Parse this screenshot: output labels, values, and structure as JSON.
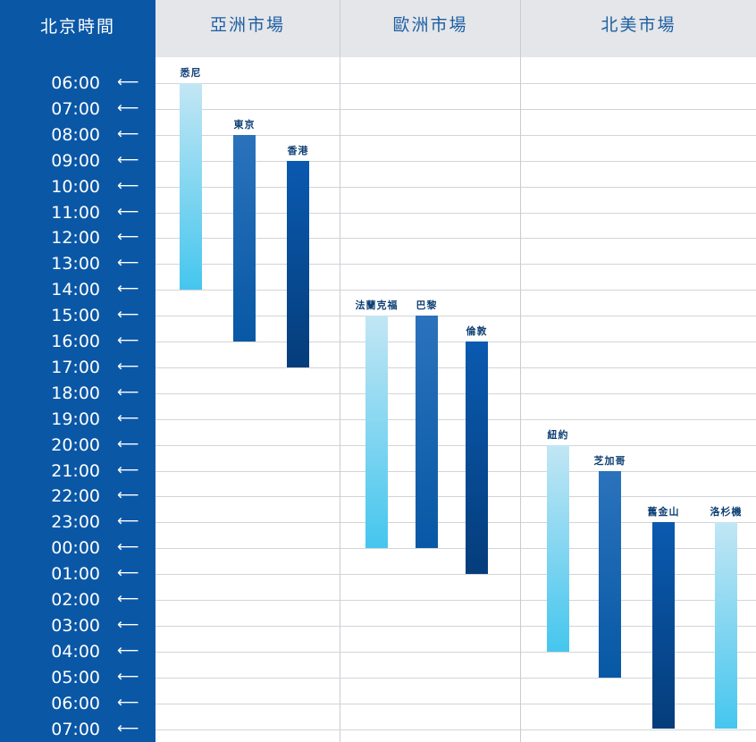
{
  "sidebar": {
    "title": "北京時間"
  },
  "regions": [
    {
      "name": "亞洲市場"
    },
    {
      "name": "歐洲市場"
    },
    {
      "name": "北美市場"
    }
  ],
  "chart_data": {
    "type": "bar",
    "orientation": "vertical-floating",
    "categories": [
      "06:00",
      "07:00",
      "08:00",
      "09:00",
      "10:00",
      "11:00",
      "12:00",
      "13:00",
      "14:00",
      "15:00",
      "16:00",
      "17:00",
      "18:00",
      "19:00",
      "20:00",
      "21:00",
      "22:00",
      "23:00",
      "00:00",
      "01:00",
      "02:00",
      "03:00",
      "04:00",
      "05:00",
      "06:00",
      "07:00"
    ],
    "series": [
      {
        "name": "悉尼",
        "region": 0,
        "start": "06:00",
        "end": "14:00",
        "style": "light"
      },
      {
        "name": "東京",
        "region": 0,
        "start": "08:00",
        "end": "16:00",
        "style": "medium"
      },
      {
        "name": "香港",
        "region": 0,
        "start": "09:00",
        "end": "17:00",
        "style": "dark"
      },
      {
        "name": "法蘭克福",
        "region": 1,
        "start": "15:00",
        "end": "00:00",
        "style": "light"
      },
      {
        "name": "巴黎",
        "region": 1,
        "start": "15:00",
        "end": "00:00",
        "style": "medium"
      },
      {
        "name": "倫敦",
        "region": 1,
        "start": "16:00",
        "end": "01:00",
        "style": "dark"
      },
      {
        "name": "紐約",
        "region": 2,
        "start": "20:00",
        "end": "04:00",
        "style": "light"
      },
      {
        "name": "芝加哥",
        "region": 2,
        "start": "21:00",
        "end": "05:00",
        "style": "medium"
      },
      {
        "name": "舊金山",
        "region": 2,
        "start": "23:00",
        "end": "07:00",
        "style": "dark"
      },
      {
        "name": "洛杉機",
        "region": 2,
        "start": "23:00",
        "end": "07:00",
        "style": "light"
      }
    ],
    "colors": {
      "light": [
        "#c2e6f4",
        "#45c6ee"
      ],
      "medium": [
        "#2b72bc",
        "#0758a5"
      ],
      "dark": [
        "#0a5ab0",
        "#053d7b"
      ]
    }
  }
}
